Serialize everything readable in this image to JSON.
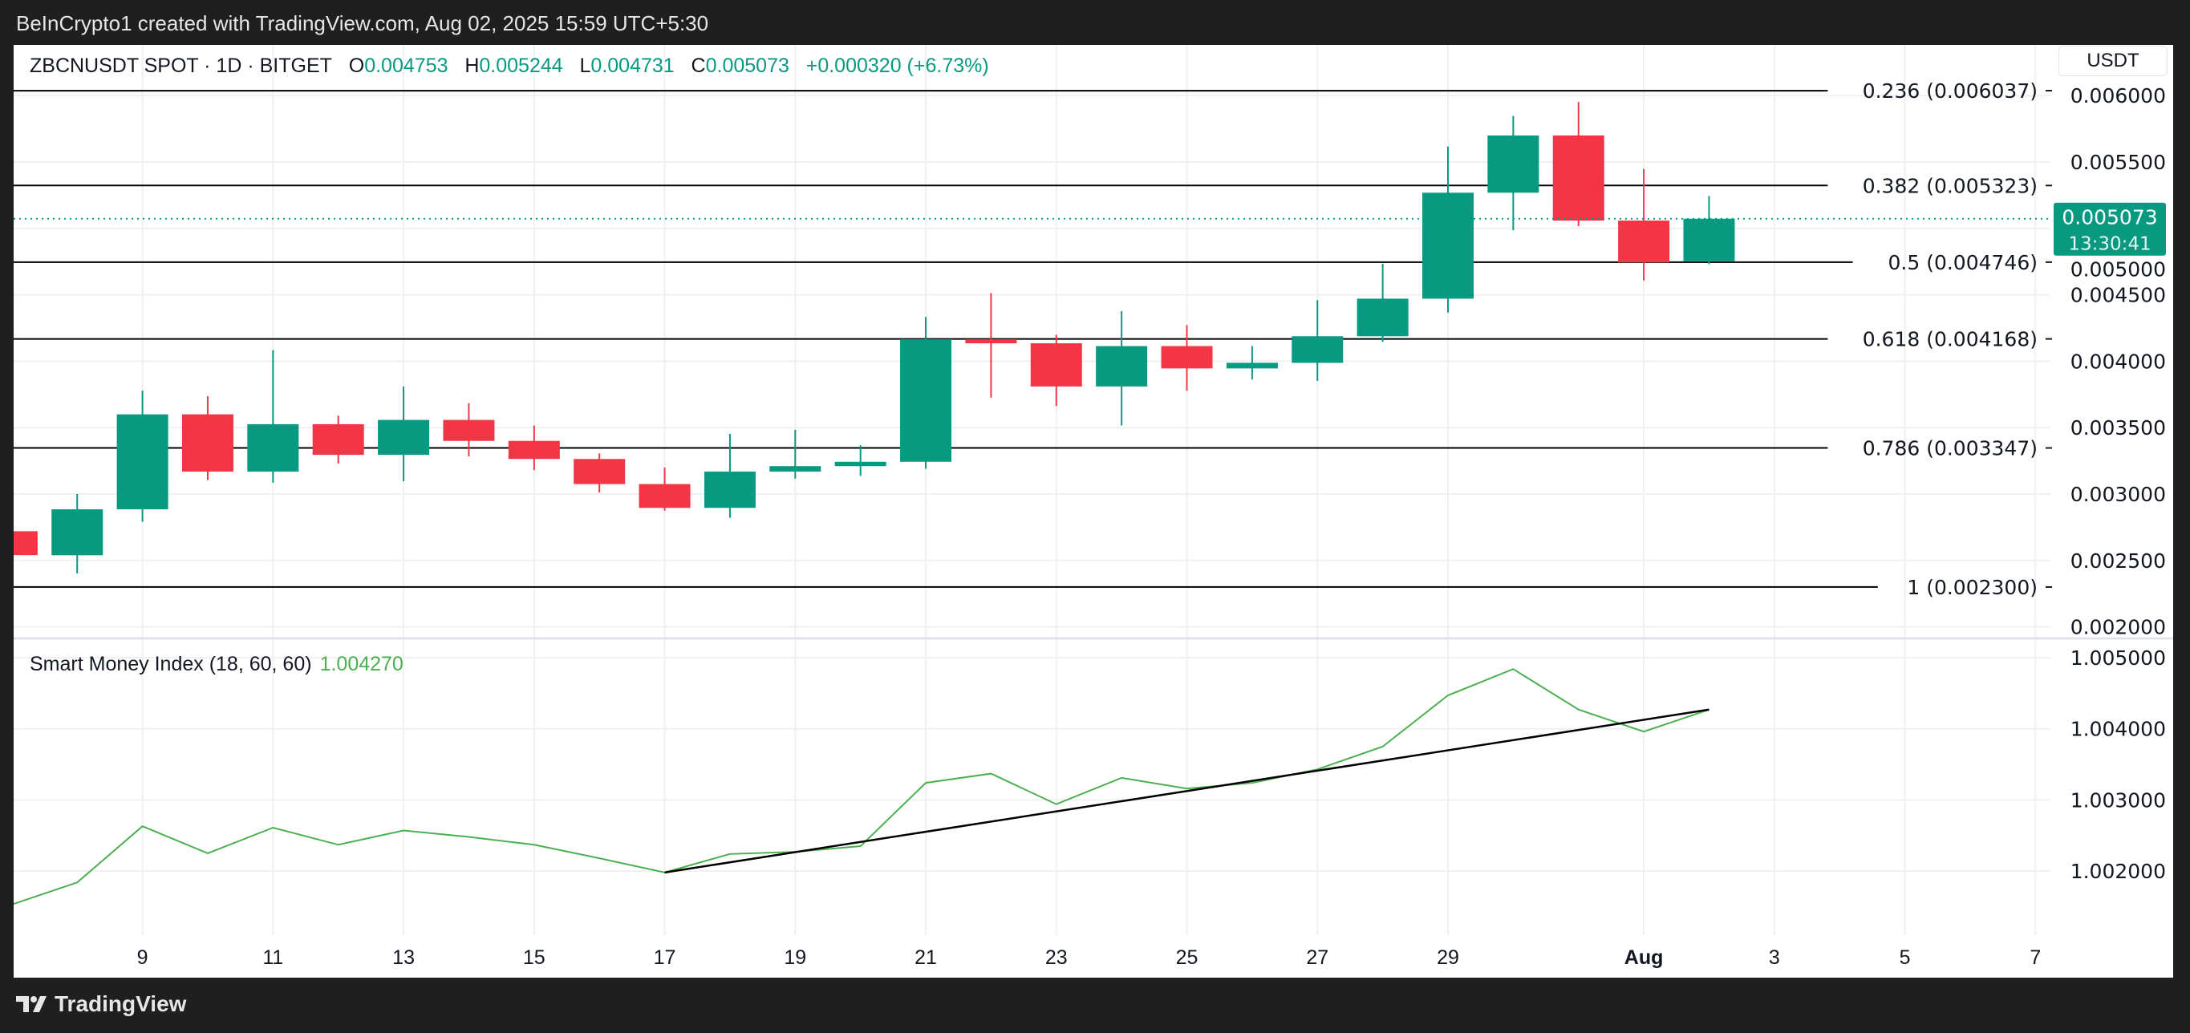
{
  "credit": "BeInCrypto1 created with TradingView.com, Aug 02, 2025 15:59 UTC+5:30",
  "header": {
    "symbol": "ZBCNUSDT SPOT · 1D · BITGET",
    "o_label": "O",
    "o": "0.004753",
    "h_label": "H",
    "h": "0.005244",
    "l_label": "L",
    "l": "0.004731",
    "c_label": "C",
    "c": "0.005073",
    "change": "+0.000320 (+6.73%)"
  },
  "currency_button": "USDT",
  "footer_brand": "TradingView",
  "colors": {
    "up": "#089981",
    "down": "#f23645",
    "smi": "#4caf50",
    "trend": "#000000",
    "grid": "#f0f0f0"
  },
  "chart_data": [
    {
      "type": "candlestick",
      "x_ticks": [
        {
          "day": 9,
          "label": "9"
        },
        {
          "day": 11,
          "label": "11"
        },
        {
          "day": 13,
          "label": "13"
        },
        {
          "day": 15,
          "label": "15"
        },
        {
          "day": 17,
          "label": "17"
        },
        {
          "day": 19,
          "label": "19"
        },
        {
          "day": 21,
          "label": "21"
        },
        {
          "day": 23,
          "label": "23"
        },
        {
          "day": 25,
          "label": "25"
        },
        {
          "day": 27,
          "label": "27"
        },
        {
          "day": 29,
          "label": "29"
        },
        {
          "day": 32,
          "label": "Aug"
        },
        {
          "day": 34,
          "label": "3"
        },
        {
          "day": 36,
          "label": "5"
        },
        {
          "day": 38,
          "label": "7"
        }
      ],
      "y_ticks": [
        "0.006000",
        "0.005500",
        "0.005000",
        "0.004500",
        "0.004000",
        "0.003500",
        "0.003000",
        "0.002500",
        "0.002000"
      ],
      "ylim": [
        0.00195,
        0.0061
      ],
      "candles": [
        {
          "date": "Jul 7",
          "o": 0.00272,
          "h": 0.00274,
          "l": 0.00252,
          "c": 0.00254
        },
        {
          "date": "Jul 8",
          "o": 0.002539,
          "h": 0.003001,
          "l": 0.002402,
          "c": 0.002885
        },
        {
          "date": "Jul 9",
          "o": 0.002885,
          "h": 0.003778,
          "l": 0.002791,
          "c": 0.0036
        },
        {
          "date": "Jul 10",
          "o": 0.0036,
          "h": 0.003736,
          "l": 0.003106,
          "c": 0.003169
        },
        {
          "date": "Jul 11",
          "o": 0.003169,
          "h": 0.004083,
          "l": 0.003085,
          "c": 0.003526
        },
        {
          "date": "Jul 12",
          "o": 0.003526,
          "h": 0.00359,
          "l": 0.00323,
          "c": 0.003295
        },
        {
          "date": "Jul 13",
          "o": 0.003295,
          "h": 0.00381,
          "l": 0.003096,
          "c": 0.003558
        },
        {
          "date": "Jul 14",
          "o": 0.003558,
          "h": 0.003684,
          "l": 0.003284,
          "c": 0.0034
        },
        {
          "date": "Jul 15",
          "o": 0.0034,
          "h": 0.003516,
          "l": 0.00318,
          "c": 0.003264
        },
        {
          "date": "Jul 16",
          "o": 0.003264,
          "h": 0.003306,
          "l": 0.003012,
          "c": 0.003075
        },
        {
          "date": "Jul 17",
          "o": 0.003075,
          "h": 0.0032,
          "l": 0.002875,
          "c": 0.002896
        },
        {
          "date": "Jul 18",
          "o": 0.002896,
          "h": 0.003453,
          "l": 0.002822,
          "c": 0.003169
        },
        {
          "date": "Jul 19",
          "o": 0.003169,
          "h": 0.003484,
          "l": 0.003116,
          "c": 0.00321
        },
        {
          "date": "Jul 20",
          "o": 0.00321,
          "h": 0.003368,
          "l": 0.003137,
          "c": 0.003243
        },
        {
          "date": "Jul 21",
          "o": 0.003243,
          "h": 0.004334,
          "l": 0.00319,
          "c": 0.004166
        },
        {
          "date": "Jul 22",
          "o": 0.004166,
          "h": 0.004513,
          "l": 0.003726,
          "c": 0.004135
        },
        {
          "date": "Jul 23",
          "o": 0.004135,
          "h": 0.004198,
          "l": 0.003663,
          "c": 0.00381
        },
        {
          "date": "Jul 24",
          "o": 0.00381,
          "h": 0.004377,
          "l": 0.003516,
          "c": 0.004114
        },
        {
          "date": "Jul 25",
          "o": 0.004114,
          "h": 0.004272,
          "l": 0.003778,
          "c": 0.003946
        },
        {
          "date": "Jul 26",
          "o": 0.003946,
          "h": 0.004114,
          "l": 0.003862,
          "c": 0.003988
        },
        {
          "date": "Jul 27",
          "o": 0.003988,
          "h": 0.00446,
          "l": 0.003852,
          "c": 0.004188
        },
        {
          "date": "Jul 28",
          "o": 0.004188,
          "h": 0.004734,
          "l": 0.004146,
          "c": 0.004471
        },
        {
          "date": "Jul 29",
          "o": 0.004471,
          "h": 0.005616,
          "l": 0.004366,
          "c": 0.005269
        },
        {
          "date": "Jul 30",
          "o": 0.005269,
          "h": 0.005847,
          "l": 0.004986,
          "c": 0.0057
        },
        {
          "date": "Jul 31",
          "o": 0.0057,
          "h": 0.005952,
          "l": 0.005017,
          "c": 0.005059
        },
        {
          "date": "Aug 1",
          "o": 0.005059,
          "h": 0.005448,
          "l": 0.004608,
          "c": 0.004744
        },
        {
          "date": "Aug 2",
          "o": 0.004753,
          "h": 0.005244,
          "l": 0.004731,
          "c": 0.005073
        }
      ],
      "fib_levels": [
        {
          "level": 0.236,
          "price": 0.006037,
          "label": "0.236 (0.006037)"
        },
        {
          "level": 0.382,
          "price": 0.005323,
          "label": "0.382 (0.005323)"
        },
        {
          "level": 0.5,
          "price": 0.004746,
          "label": "0.5 (0.004746)"
        },
        {
          "level": 0.618,
          "price": 0.004168,
          "label": "0.618 (0.004168)"
        },
        {
          "level": 0.786,
          "price": 0.003347,
          "label": "0.786 (0.003347)"
        },
        {
          "level": 1,
          "price": 0.0023,
          "label": "1 (0.002300)"
        }
      ],
      "last_price": {
        "value": 0.005073,
        "label": "0.005073",
        "countdown": "13:30:41"
      }
    },
    {
      "type": "line",
      "title": "Smart Money Index (18, 60, 60)",
      "last_value": "1.004270",
      "y_ticks": [
        "1.005000",
        "1.004000",
        "1.003000",
        "1.002000"
      ],
      "ylim": [
        1.00125,
        1.00538
      ],
      "series": [
        {
          "values": [
            {
              "date": "Jul 7",
              "v": 1.00153
            },
            {
              "date": "Jul 8",
              "v": 1.00184
            },
            {
              "date": "Jul 9",
              "v": 1.00263
            },
            {
              "date": "Jul 10",
              "v": 1.00225
            },
            {
              "date": "Jul 11",
              "v": 1.00261
            },
            {
              "date": "Jul 12",
              "v": 1.00237
            },
            {
              "date": "Jul 13",
              "v": 1.00257
            },
            {
              "date": "Jul 14",
              "v": 1.00248
            },
            {
              "date": "Jul 15",
              "v": 1.00237
            },
            {
              "date": "Jul 16",
              "v": 1.00218
            },
            {
              "date": "Jul 17",
              "v": 1.00198
            },
            {
              "date": "Jul 18",
              "v": 1.00224
            },
            {
              "date": "Jul 19",
              "v": 1.00227
            },
            {
              "date": "Jul 20",
              "v": 1.00235
            },
            {
              "date": "Jul 21",
              "v": 1.00324
            },
            {
              "date": "Jul 22",
              "v": 1.00337
            },
            {
              "date": "Jul 23",
              "v": 1.00294
            },
            {
              "date": "Jul 24",
              "v": 1.00331
            },
            {
              "date": "Jul 25",
              "v": 1.00316
            },
            {
              "date": "Jul 26",
              "v": 1.00324
            },
            {
              "date": "Jul 27",
              "v": 1.00343
            },
            {
              "date": "Jul 28",
              "v": 1.00375
            },
            {
              "date": "Jul 29",
              "v": 1.00447
            },
            {
              "date": "Jul 30",
              "v": 1.00484
            },
            {
              "date": "Jul 31",
              "v": 1.00427
            },
            {
              "date": "Aug 1",
              "v": 1.00396
            },
            {
              "date": "Aug 2",
              "v": 1.00427
            }
          ]
        }
      ],
      "trendline": {
        "from": {
          "date": "Jul 17",
          "v": 1.00198
        },
        "to": {
          "date": "Aug 2",
          "v": 1.00427
        }
      }
    }
  ]
}
